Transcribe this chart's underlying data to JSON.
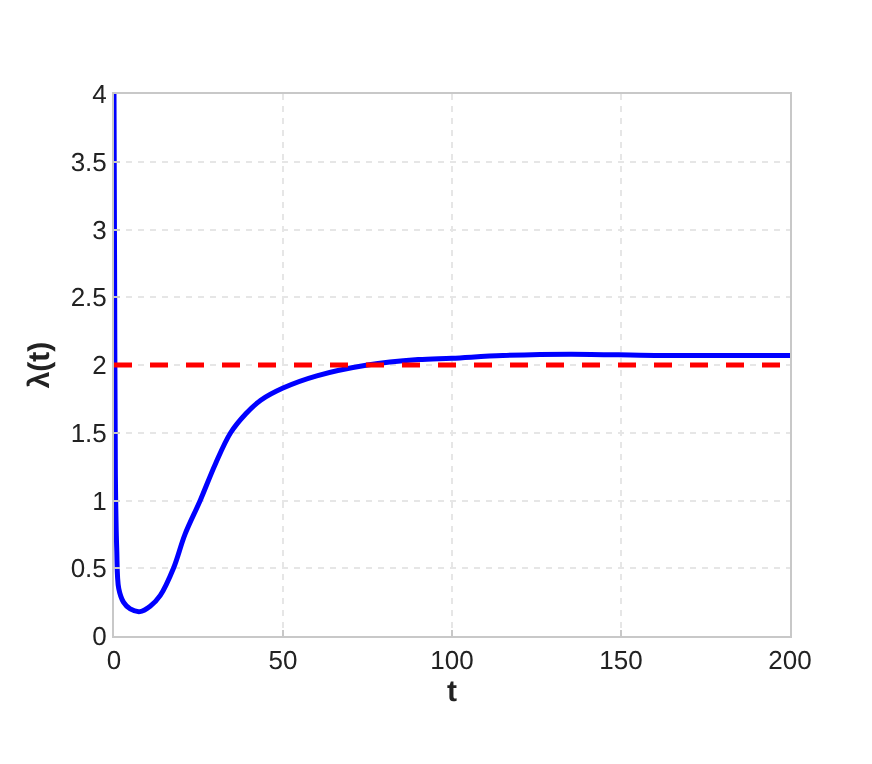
{
  "chart_data": {
    "type": "line",
    "xlabel": "t",
    "ylabel": "λ(t)",
    "series": [
      {
        "color": "#0000ff",
        "x": [
          0,
          0.2,
          0.4,
          0.8,
          1.4,
          2.8,
          4.8,
          7.7,
          10.7,
          13.7,
          17.6,
          21,
          25.5,
          30,
          34.5,
          39,
          43.4,
          50,
          60,
          75,
          90,
          100,
          115,
          135,
          160,
          180,
          200
        ],
        "values": [
          4,
          2.5,
          1.2,
          0.65,
          0.35,
          0.25,
          0.2,
          0.18,
          0.22,
          0.3,
          0.5,
          0.75,
          1.0,
          1.27,
          1.5,
          1.64,
          1.74,
          1.83,
          1.92,
          2.0,
          2.04,
          2.05,
          2.07,
          2.08,
          2.07,
          2.07,
          2.07
        ]
      }
    ],
    "ref_lines": [
      {
        "axis": "y",
        "value": 2,
        "color": "#ff0000",
        "line_style": "dashed"
      }
    ],
    "xlim": [
      0,
      200
    ],
    "xticks": [
      0,
      50,
      100,
      150,
      200
    ],
    "ylim": [
      0,
      4
    ],
    "yticks": [
      0,
      0.5,
      1,
      1.5,
      2,
      2.5,
      3,
      3.5,
      4
    ],
    "grid": true,
    "line_style": "solid",
    "marker": "none"
  }
}
